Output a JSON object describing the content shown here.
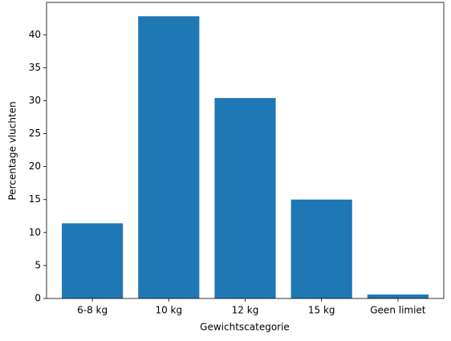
{
  "chart_data": {
    "type": "bar",
    "x_label": "Gewichtscategorie",
    "y_label": "Percentage vluchten",
    "categories": [
      "6-8 kg",
      "10 kg",
      "12 kg",
      "15 kg",
      "Geen limiet"
    ],
    "values": [
      11.4,
      42.8,
      30.4,
      15.0,
      0.6
    ],
    "color": "#1f77b4",
    "ylim": [
      0,
      44.9
    ],
    "yticks": [
      0,
      5,
      10,
      15,
      20,
      25,
      30,
      35,
      40
    ],
    "grid": false
  }
}
